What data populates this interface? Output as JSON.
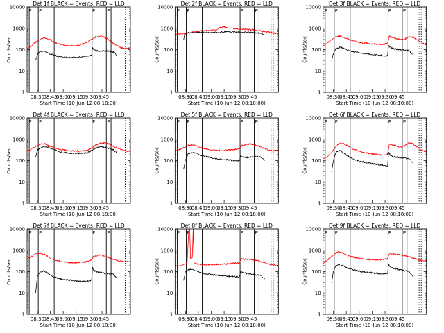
{
  "figure": {
    "colors": {
      "events": "#000000",
      "lld": "#ff0000",
      "axes": "#000000"
    },
    "y_scale": "log",
    "ylim": [
      1,
      10000
    ],
    "ytick_labels": [
      "1",
      "10",
      "100",
      "1000",
      "10000"
    ],
    "ylabel": "Counts/sec",
    "xtick_labels": [
      "08:30",
      "08:45",
      "09:00",
      "09:15",
      "09:30",
      "09:45"
    ],
    "xlabel": "Start Time (10-Jun-12 08:18:00)",
    "marker_letters": [
      "E",
      "F",
      "F",
      "E"
    ]
  },
  "chart_data": [
    {
      "type": "line",
      "title": "Det 1f BLACK = Events, RED = LLD",
      "xlim_min": [
        0,
        120
      ],
      "ylim": [
        1,
        10000
      ],
      "y_scale": "log",
      "marker_lines_min": [
        2.5,
        13,
        31.5,
        75.5,
        92,
        97.5,
        111.5
      ],
      "series": [
        {
          "key": "events",
          "color": "#000000",
          "x": [
            10,
            12,
            15,
            20,
            25,
            28,
            32,
            35,
            40,
            45,
            50,
            55,
            60,
            65,
            70,
            75,
            76,
            78,
            80,
            85,
            90,
            95,
            98,
            102,
            104
          ],
          "y": [
            30,
            60,
            80,
            85,
            70,
            60,
            55,
            48,
            45,
            43,
            42,
            44,
            46,
            48,
            50,
            55,
            120,
            100,
            90,
            85,
            88,
            85,
            80,
            75,
            50
          ]
        },
        {
          "key": "lld",
          "color": "#ff0000",
          "x": [
            0,
            5,
            10,
            15,
            20,
            25,
            30,
            35,
            40,
            45,
            50,
            55,
            60,
            65,
            70,
            75,
            80,
            85,
            90,
            95,
            100,
            105,
            110,
            115,
            120
          ],
          "y": [
            110,
            150,
            220,
            300,
            360,
            320,
            240,
            190,
            170,
            155,
            150,
            155,
            165,
            185,
            230,
            300,
            400,
            430,
            380,
            290,
            200,
            150,
            120,
            110,
            120
          ]
        }
      ]
    },
    {
      "type": "line",
      "title": "Det 2f BLACK = Events, RED = LLD",
      "xlim_min": [
        0,
        120
      ],
      "ylim": [
        1,
        10000
      ],
      "y_scale": "log",
      "marker_lines_min": [
        2.5,
        13,
        31.5,
        75.5,
        92,
        97.5,
        111.5
      ],
      "series": [
        {
          "key": "events",
          "color": "#000000",
          "x": [
            10,
            11,
            14,
            20,
            30,
            40,
            50,
            55,
            60,
            70,
            76,
            80,
            90,
            98,
            104
          ],
          "y": [
            280,
            500,
            600,
            650,
            640,
            630,
            650,
            680,
            700,
            690,
            660,
            650,
            630,
            600,
            500
          ]
        },
        {
          "key": "lld",
          "color": "#ff0000",
          "x": [
            0,
            10,
            20,
            30,
            40,
            48,
            50,
            55,
            60,
            70,
            80,
            90,
            100,
            110,
            120
          ],
          "y": [
            500,
            560,
            650,
            750,
            800,
            850,
            1000,
            1200,
            1100,
            950,
            900,
            850,
            750,
            650,
            550
          ]
        }
      ]
    },
    {
      "type": "line",
      "title": "Det 3f BLACK = Events, RED = LLD",
      "xlim_min": [
        0,
        120
      ],
      "ylim": [
        1,
        10000
      ],
      "y_scale": "log",
      "marker_lines_min": [
        2.5,
        13,
        31.5,
        75.5,
        92,
        97.5,
        111.5
      ],
      "series": [
        {
          "key": "events",
          "color": "#000000",
          "x": [
            10,
            12,
            15,
            20,
            25,
            30,
            35,
            40,
            45,
            50,
            55,
            60,
            65,
            70,
            75,
            76,
            78,
            82,
            88,
            95,
            100,
            104
          ],
          "y": [
            30,
            70,
            110,
            130,
            110,
            90,
            80,
            75,
            70,
            65,
            60,
            58,
            55,
            52,
            50,
            160,
            130,
            110,
            100,
            95,
            90,
            60
          ]
        },
        {
          "key": "lld",
          "color": "#ff0000",
          "x": [
            0,
            5,
            10,
            15,
            20,
            25,
            30,
            35,
            40,
            45,
            50,
            55,
            60,
            65,
            70,
            75,
            77,
            80,
            85,
            90,
            95,
            100,
            105,
            110,
            115,
            120
          ],
          "y": [
            150,
            200,
            300,
            400,
            420,
            350,
            300,
            260,
            230,
            210,
            200,
            190,
            185,
            180,
            175,
            200,
            420,
            380,
            330,
            300,
            310,
            400,
            380,
            280,
            200,
            170
          ]
        }
      ]
    },
    {
      "type": "line",
      "title": "Det 4f BLACK = Events, RED = LLD",
      "xlim_min": [
        0,
        120
      ],
      "ylim": [
        1,
        10000
      ],
      "y_scale": "log",
      "marker_lines_min": [
        2.5,
        13,
        31.5,
        75.5,
        92,
        97.5,
        111.5
      ],
      "series": [
        {
          "key": "events",
          "color": "#000000",
          "x": [
            10,
            12,
            15,
            20,
            25,
            30,
            40,
            50,
            60,
            70,
            75,
            80,
            85,
            90,
            95,
            100,
            104
          ],
          "y": [
            150,
            300,
            380,
            450,
            420,
            350,
            250,
            220,
            220,
            230,
            300,
            400,
            450,
            420,
            380,
            320,
            250
          ]
        },
        {
          "key": "lld",
          "color": "#ff0000",
          "x": [
            0,
            5,
            10,
            15,
            20,
            25,
            30,
            40,
            50,
            60,
            70,
            75,
            80,
            85,
            90,
            95,
            100,
            105,
            110,
            115,
            120
          ],
          "y": [
            280,
            350,
            450,
            580,
            620,
            520,
            420,
            330,
            290,
            280,
            300,
            400,
            550,
            650,
            680,
            600,
            480,
            380,
            320,
            280,
            260
          ]
        }
      ]
    },
    {
      "type": "line",
      "title": "Det 5f BLACK = Events, RED = LLD",
      "xlim_min": [
        0,
        120
      ],
      "ylim": [
        1,
        10000
      ],
      "y_scale": "log",
      "marker_lines_min": [
        2.5,
        13,
        31.5,
        75.5,
        92,
        97.5,
        111.5
      ],
      "series": [
        {
          "key": "events",
          "color": "#000000",
          "x": [
            10,
            12,
            15,
            20,
            25,
            30,
            35,
            40,
            45,
            50,
            55,
            60,
            65,
            70,
            75,
            76,
            78,
            85,
            90,
            95,
            100,
            104
          ],
          "y": [
            40,
            100,
            200,
            240,
            220,
            180,
            160,
            140,
            130,
            120,
            115,
            110,
            105,
            100,
            100,
            170,
            150,
            140,
            150,
            160,
            140,
            100
          ]
        },
        {
          "key": "lld",
          "color": "#ff0000",
          "x": [
            0,
            5,
            10,
            15,
            20,
            25,
            30,
            35,
            40,
            45,
            50,
            55,
            60,
            65,
            70,
            75,
            77,
            80,
            85,
            90,
            95,
            100,
            105,
            110,
            115,
            120
          ],
          "y": [
            300,
            320,
            400,
            520,
            550,
            500,
            420,
            360,
            330,
            310,
            300,
            300,
            310,
            320,
            340,
            380,
            500,
            550,
            600,
            580,
            500,
            420,
            350,
            300,
            290,
            300
          ]
        }
      ]
    },
    {
      "type": "line",
      "title": "Det 6f BLACK = Events, RED = LLD",
      "xlim_min": [
        0,
        120
      ],
      "ylim": [
        1,
        10000
      ],
      "y_scale": "log",
      "marker_lines_min": [
        2.5,
        13,
        31.5,
        75.5,
        92,
        97.5,
        111.5
      ],
      "series": [
        {
          "key": "events",
          "color": "#000000",
          "x": [
            10,
            12,
            15,
            20,
            25,
            30,
            35,
            40,
            45,
            50,
            55,
            60,
            65,
            70,
            75,
            76,
            78,
            82,
            88,
            95,
            100,
            104
          ],
          "y": [
            30,
            100,
            250,
            300,
            220,
            150,
            120,
            100,
            90,
            80,
            75,
            70,
            65,
            60,
            55,
            250,
            180,
            150,
            140,
            130,
            120,
            80
          ]
        },
        {
          "key": "lld",
          "color": "#ff0000",
          "x": [
            0,
            5,
            10,
            15,
            20,
            25,
            30,
            35,
            40,
            45,
            50,
            55,
            60,
            65,
            70,
            75,
            77,
            80,
            85,
            90,
            95,
            100,
            105,
            110,
            115,
            120
          ],
          "y": [
            120,
            150,
            250,
            450,
            700,
            600,
            450,
            350,
            300,
            260,
            230,
            210,
            200,
            190,
            180,
            200,
            600,
            550,
            500,
            420,
            500,
            700,
            600,
            400,
            300,
            250
          ]
        }
      ]
    },
    {
      "type": "line",
      "title": "Det 7f BLACK = Events, RED = LLD",
      "xlim_min": [
        0,
        120
      ],
      "ylim": [
        1,
        10000
      ],
      "y_scale": "log",
      "marker_lines_min": [
        2.5,
        13,
        31.5,
        75.5,
        92,
        97.5,
        111.5
      ],
      "series": [
        {
          "key": "events",
          "color": "#000000",
          "x": [
            10,
            12,
            15,
            20,
            25,
            30,
            35,
            40,
            45,
            50,
            55,
            60,
            65,
            70,
            75,
            76,
            78,
            85,
            90,
            95,
            100,
            104
          ],
          "y": [
            10,
            60,
            100,
            110,
            80,
            60,
            50,
            45,
            42,
            40,
            38,
            36,
            35,
            35,
            40,
            150,
            110,
            90,
            85,
            80,
            75,
            50
          ]
        },
        {
          "key": "lld",
          "color": "#ff0000",
          "x": [
            0,
            5,
            10,
            15,
            20,
            25,
            30,
            35,
            40,
            45,
            50,
            55,
            60,
            65,
            70,
            75,
            77,
            80,
            85,
            90,
            95,
            100,
            105,
            110,
            115,
            120
          ],
          "y": [
            400,
            500,
            700,
            750,
            650,
            480,
            380,
            330,
            300,
            280,
            270,
            260,
            270,
            280,
            300,
            350,
            500,
            550,
            600,
            520,
            450,
            380,
            320,
            300,
            290,
            300
          ]
        }
      ]
    },
    {
      "type": "line",
      "title": "Det 8f BLACK = Events, RED = LLD",
      "xlim_min": [
        0,
        120
      ],
      "ylim": [
        1,
        10000
      ],
      "y_scale": "log",
      "marker_lines_min": [
        2.5,
        13,
        31.5,
        75.5,
        92,
        97.5,
        111.5
      ],
      "series": [
        {
          "key": "events",
          "color": "#000000",
          "x": [
            10,
            12,
            15,
            20,
            25,
            30,
            35,
            40,
            45,
            50,
            55,
            60,
            65,
            70,
            75,
            76,
            78,
            85,
            90,
            95,
            100,
            104
          ],
          "y": [
            40,
            100,
            120,
            130,
            110,
            90,
            80,
            75,
            70,
            68,
            65,
            62,
            60,
            58,
            58,
            100,
            90,
            80,
            75,
            70,
            65,
            45
          ]
        },
        {
          "key": "lld",
          "color": "#ff0000",
          "x": [
            0,
            5,
            10,
            14,
            16,
            17,
            18,
            20,
            21,
            22,
            25,
            30,
            35,
            40,
            45,
            50,
            55,
            60,
            65,
            70,
            75,
            77,
            80,
            85,
            90,
            95,
            100,
            105,
            110,
            115,
            120
          ],
          "y": [
            180,
            190,
            220,
            260,
            10000,
            10000,
            400,
            450,
            10000,
            260,
            230,
            220,
            210,
            210,
            215,
            220,
            225,
            230,
            240,
            250,
            260,
            400,
            380,
            380,
            360,
            330,
            290,
            250,
            220,
            200,
            190
          ]
        }
      ]
    },
    {
      "type": "line",
      "title": "Det 9f BLACK = Events, RED = LLD",
      "xlim_min": [
        0,
        120
      ],
      "ylim": [
        1,
        10000
      ],
      "y_scale": "log",
      "marker_lines_min": [
        2.5,
        13,
        31.5,
        75.5,
        92,
        97.5,
        111.5
      ],
      "series": [
        {
          "key": "events",
          "color": "#000000",
          "x": [
            10,
            12,
            15,
            20,
            25,
            30,
            35,
            40,
            45,
            50,
            55,
            60,
            65,
            70,
            75,
            76,
            78,
            85,
            90,
            95,
            100,
            104
          ],
          "y": [
            30,
            100,
            200,
            220,
            180,
            140,
            120,
            110,
            100,
            95,
            90,
            85,
            82,
            80,
            78,
            220,
            160,
            130,
            120,
            110,
            100,
            60
          ]
        },
        {
          "key": "lld",
          "color": "#ff0000",
          "x": [
            0,
            5,
            10,
            15,
            20,
            25,
            30,
            35,
            40,
            45,
            50,
            55,
            60,
            65,
            70,
            75,
            77,
            80,
            85,
            90,
            95,
            100,
            105,
            110,
            115,
            120
          ],
          "y": [
            250,
            350,
            500,
            800,
            850,
            700,
            550,
            480,
            430,
            400,
            380,
            370,
            360,
            360,
            370,
            400,
            700,
            680,
            650,
            600,
            550,
            500,
            420,
            360,
            330,
            320
          ]
        }
      ]
    }
  ]
}
